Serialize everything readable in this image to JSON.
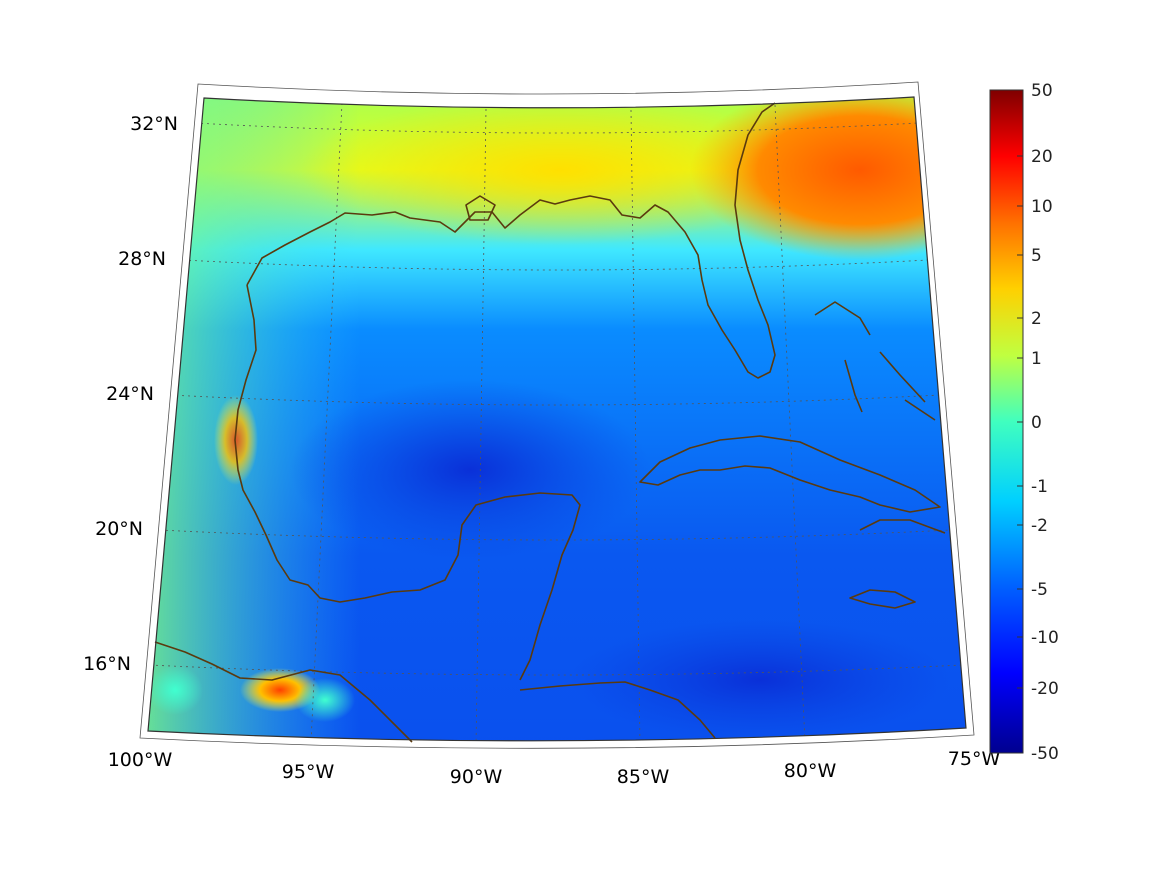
{
  "map": {
    "projection": "conic",
    "region": "Gulf of Mexico and western Caribbean",
    "lon_ticks": [
      "100°W",
      "95°W",
      "90°W",
      "85°W",
      "80°W",
      "75°W"
    ],
    "lat_ticks": [
      "32°N",
      "28°N",
      "24°N",
      "20°N",
      "16°N"
    ],
    "lon_range": [
      -100,
      -75
    ],
    "lat_range": [
      14,
      33
    ],
    "gridlines": "dotted",
    "coastline_color": "#5a3a0e"
  },
  "colorbar": {
    "colormap": "jet",
    "placement": "right",
    "tick_labels": [
      "50",
      "20",
      "10",
      "5",
      "2",
      "1",
      "0",
      "-1",
      "-2",
      "-5",
      "-10",
      "-20",
      "-50"
    ],
    "range": [
      -50,
      50
    ],
    "colors": [
      "#00008f",
      "#0000ff",
      "#0070ff",
      "#00c8ff",
      "#40ffbf",
      "#bfff40",
      "#ffd000",
      "#ff6000",
      "#ff0000",
      "#7f0000"
    ]
  }
}
